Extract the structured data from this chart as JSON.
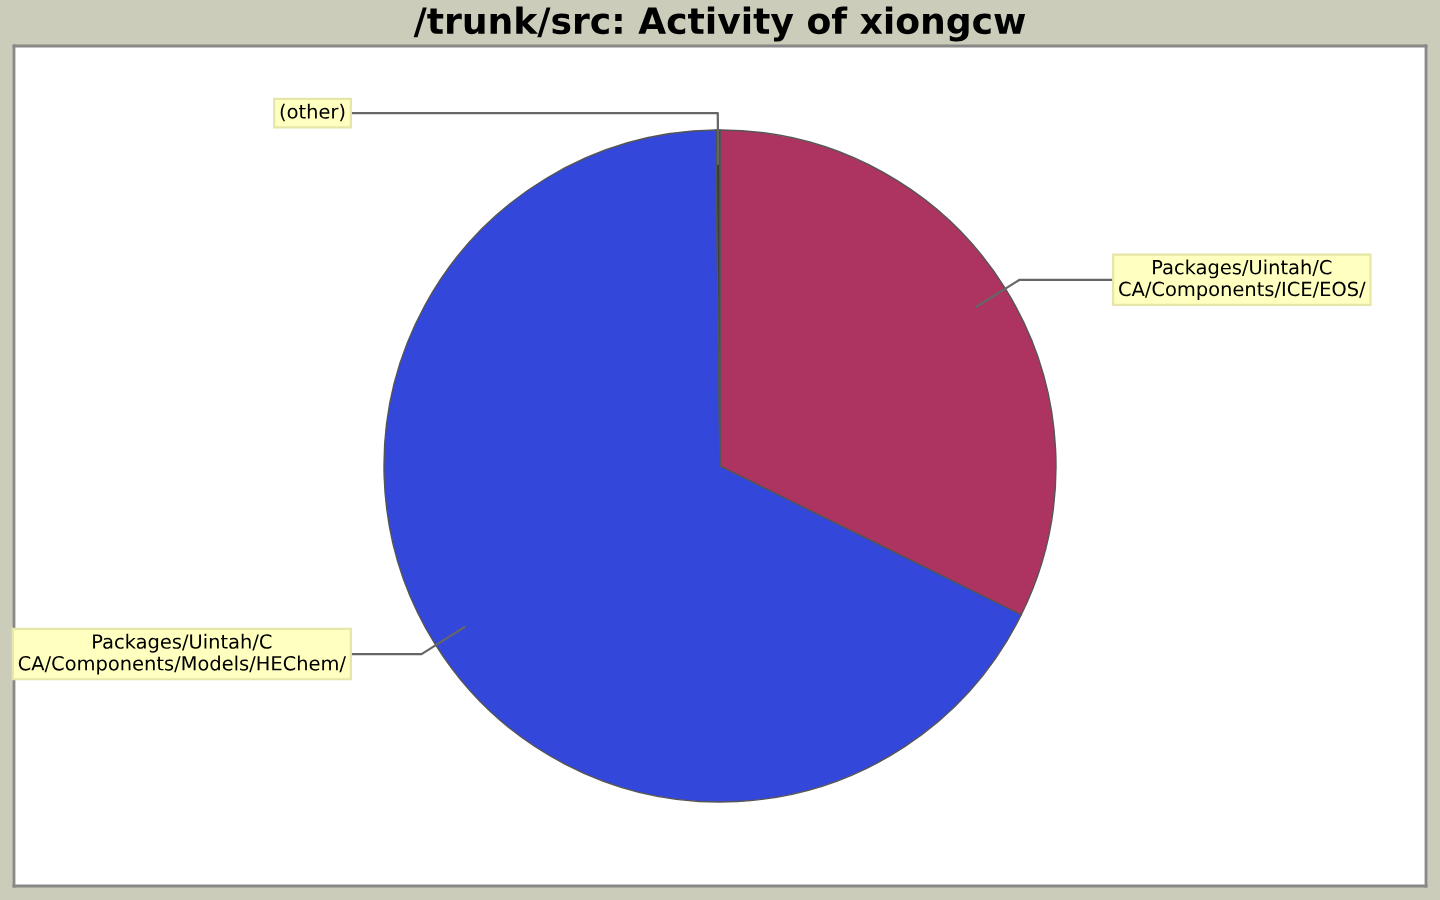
{
  "chart_data": {
    "type": "pie",
    "title": "/trunk/src: Activity of xiongcw",
    "categories": [
      "Packages/Uintah/C\nCA/Components/ICE/EOS/",
      "Packages/Uintah/C\nCA/Components/Models/HEChem/",
      "(other)"
    ],
    "values": [
      32.3,
      67.5,
      0.2
    ],
    "colors": [
      "#ad3360",
      "#3347db",
      "#3c3c3c"
    ]
  }
}
